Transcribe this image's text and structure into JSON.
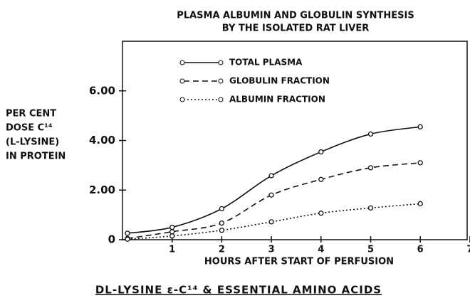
{
  "chart_data": {
    "type": "line",
    "title": [
      "PLASMA ALBUMIN AND GLOBULIN SYNTHESIS",
      "BY THE ISOLATED RAT LIVER"
    ],
    "y_label": [
      "PER CENT",
      "DOSE C¹⁴",
      "(L-LYSINE)",
      "IN PROTEIN"
    ],
    "x_label": "HOURS AFTER START OF PERFUSION",
    "caption": "DL-LYSINE ε-C¹⁴ & ESSENTIAL AMINO ACIDS",
    "x": [
      0.1,
      1,
      2,
      3,
      4,
      5,
      6
    ],
    "series": [
      {
        "name": "TOTAL PLASMA",
        "color": "#111111",
        "dash": "solid",
        "values": [
          0.26,
          0.5,
          1.25,
          2.58,
          3.54,
          4.26,
          4.55
        ]
      },
      {
        "name": "GLOBULIN FRACTION",
        "color": "#111111",
        "dash": "dashed",
        "values": [
          0.05,
          0.32,
          0.67,
          1.8,
          2.43,
          2.9,
          3.1
        ]
      },
      {
        "name": "ALBUMIN FRACTION",
        "color": "#111111",
        "dash": "dotted",
        "values": [
          0.02,
          0.15,
          0.38,
          0.72,
          1.07,
          1.28,
          1.45
        ]
      }
    ],
    "xlim": [
      0,
      7
    ],
    "xticks": [
      1,
      2,
      3,
      4,
      5,
      6,
      7
    ],
    "ylim": [
      0,
      8
    ],
    "yticks": [
      0,
      {
        "value": 2,
        "label": "2.00"
      },
      {
        "value": 4,
        "label": "4.00"
      },
      {
        "value": 6,
        "label": "6.00"
      }
    ]
  }
}
